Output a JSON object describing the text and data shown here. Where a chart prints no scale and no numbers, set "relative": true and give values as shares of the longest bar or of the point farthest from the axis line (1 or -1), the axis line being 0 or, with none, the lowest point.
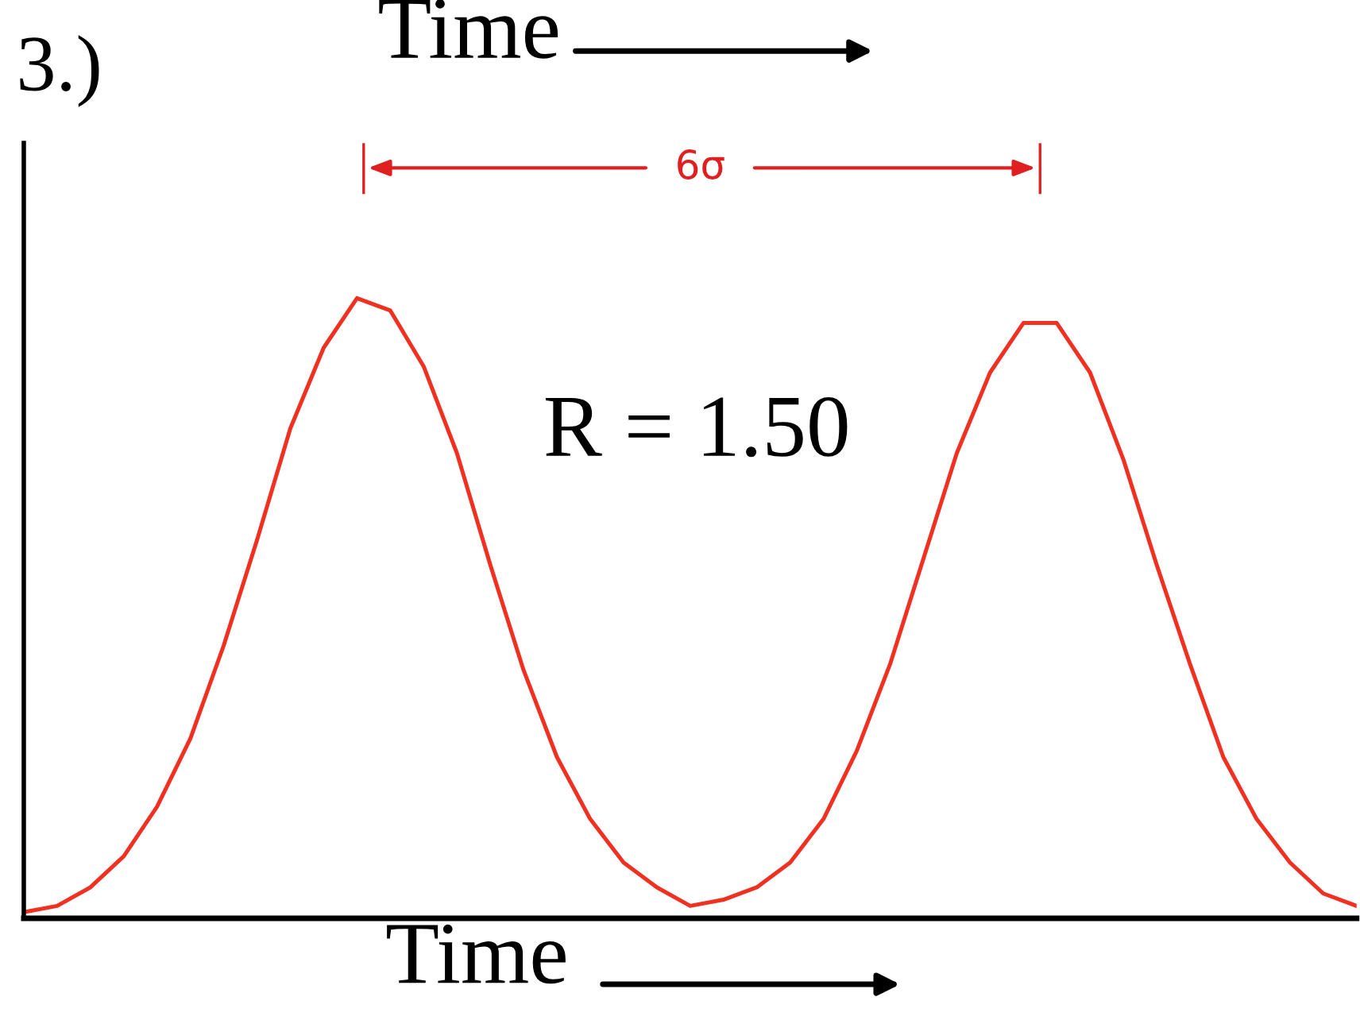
{
  "chart_data": {
    "type": "line",
    "relative": true,
    "xlabel": "Time",
    "categories": [
      null,
      null,
      null,
      null,
      null,
      null,
      null,
      null,
      null,
      null,
      null,
      null,
      null,
      null,
      null,
      null,
      null,
      null,
      null,
      null,
      null,
      null,
      null,
      null,
      null,
      null,
      null,
      null,
      null,
      null,
      null,
      null,
      null,
      null,
      null,
      null,
      null,
      null,
      null,
      null,
      null
    ],
    "series": [
      {
        "color": "#f03020",
        "values": [
          0.01,
          0.02,
          0.05,
          0.1,
          0.18,
          0.29,
          0.44,
          0.61,
          0.79,
          0.92,
          1.0,
          0.98,
          0.89,
          0.75,
          0.57,
          0.4,
          0.26,
          0.16,
          0.09,
          0.05,
          0.02,
          0.03,
          0.05,
          0.09,
          0.16,
          0.27,
          0.41,
          0.58,
          0.75,
          0.88,
          0.96,
          0.96,
          0.88,
          0.74,
          0.57,
          0.41,
          0.26,
          0.16,
          0.09,
          0.04,
          0.02
        ]
      }
    ],
    "annotations": [
      "3.)",
      "Time",
      "6σ",
      "R = 1.50"
    ],
    "grid": false,
    "legend": false
  }
}
